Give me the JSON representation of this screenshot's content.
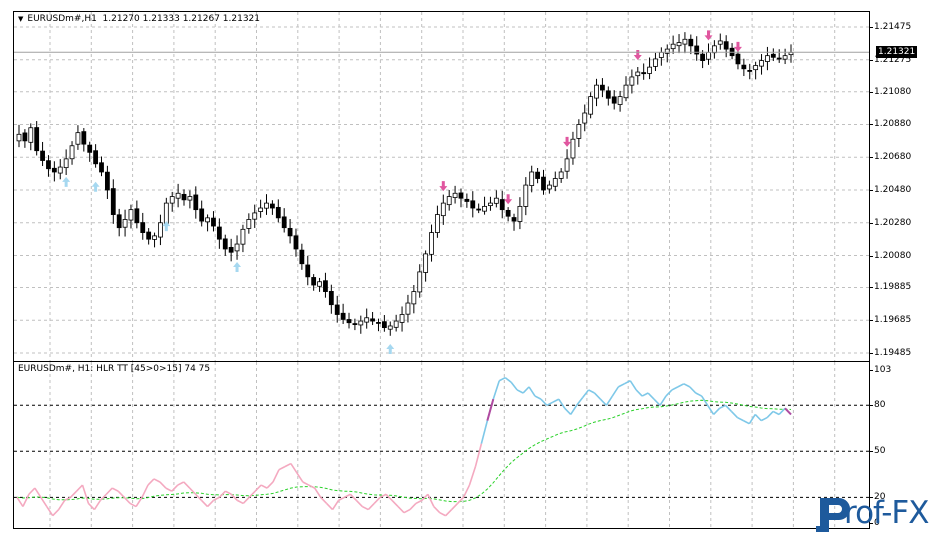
{
  "main_chart": {
    "title_symbol": "EURUSDm#,H1",
    "title_ohlc": "1.21270 1.21333 1.21267 1.21321",
    "price_ticks": [
      "1.21475",
      "1.21275",
      "1.21080",
      "1.20880",
      "1.20680",
      "1.20480",
      "1.20280",
      "1.20080",
      "1.19885",
      "1.19685",
      "1.19485"
    ],
    "current_price": "1.21321"
  },
  "indicator": {
    "title": "EURUSDm#, H1: HLR TT [45>0>15]  74 75",
    "levels": [
      "103",
      "80",
      "50",
      "20",
      "0"
    ]
  },
  "logo": {
    "text": "rof-FX"
  },
  "colors": {
    "background": "#ffffff",
    "grid": "#c0c0c0",
    "candle_bull": "#ffffff",
    "candle_bear": "#000000",
    "arrow_up": "#a6d8f0",
    "arrow_down": "#e0569f",
    "hlr_high": "#7ec8e8",
    "hlr_low": "#f4a9c0",
    "hlr_signal": "#2bd12b",
    "logo": "#1e5a9c"
  },
  "chart_data": {
    "type": "candlestick",
    "price_axis": {
      "min": 1.19485,
      "max": 1.21475
    },
    "current_price": 1.21321,
    "candles_close": [
      1.2082,
      1.2078,
      1.2086,
      1.2072,
      1.2066,
      1.2061,
      1.2059,
      1.2062,
      1.2067,
      1.2075,
      1.2083,
      1.2076,
      1.2071,
      1.2064,
      1.2059,
      1.2048,
      1.2033,
      1.2025,
      1.203,
      1.2036,
      1.2028,
      1.2022,
      1.2018,
      1.202,
      1.2028,
      1.204,
      1.2044,
      1.2046,
      1.2042,
      1.2044,
      1.2036,
      1.2029,
      1.2031,
      1.2026,
      1.2018,
      1.2012,
      1.201,
      1.2015,
      1.2024,
      1.203,
      1.2034,
      1.2037,
      1.204,
      1.2037,
      1.2031,
      1.2025,
      1.202,
      1.2012,
      1.2003,
      1.1995,
      1.199,
      1.1992,
      1.1986,
      1.1978,
      1.1972,
      1.1969,
      1.1967,
      1.1966,
      1.1968,
      1.197,
      1.1968,
      1.1967,
      1.1964,
      1.1965,
      1.1968,
      1.1972,
      1.1979,
      1.1986,
      1.1998,
      1.2009,
      1.2022,
      1.2033,
      1.204,
      1.2044,
      1.2046,
      1.2043,
      1.2041,
      1.2037,
      1.2036,
      1.2038,
      1.204,
      1.2043,
      1.2036,
      1.2032,
      1.2029,
      1.2038,
      1.2051,
      1.2059,
      1.2055,
      1.2048,
      1.2051,
      1.2055,
      1.2059,
      1.2067,
      1.2079,
      1.2088,
      1.2095,
      1.2105,
      1.2112,
      1.2109,
      1.2104,
      1.2101,
      1.2105,
      1.2112,
      1.2117,
      1.212,
      1.2119,
      1.2123,
      1.2128,
      1.2132,
      1.2134,
      1.2137,
      1.2138,
      1.214,
      1.2136,
      1.2131,
      1.2127,
      1.2132,
      1.2136,
      1.2139,
      1.2134,
      1.213,
      1.2125,
      1.2122,
      1.2121,
      1.2124,
      1.2127,
      1.213,
      1.2129,
      1.2128,
      1.213,
      1.2132
    ],
    "hlr_axis": {
      "min": 0,
      "max": 103,
      "levels": [
        80,
        50,
        20
      ]
    },
    "hlr_values": [
      20,
      14,
      22,
      26,
      20,
      14,
      8,
      12,
      18,
      20,
      24,
      28,
      16,
      12,
      18,
      22,
      26,
      24,
      20,
      16,
      14,
      20,
      28,
      32,
      30,
      26,
      24,
      28,
      30,
      26,
      22,
      18,
      14,
      18,
      20,
      24,
      22,
      18,
      16,
      20,
      24,
      28,
      26,
      30,
      38,
      40,
      42,
      36,
      30,
      28,
      26,
      20,
      16,
      12,
      18,
      20,
      22,
      18,
      14,
      12,
      16,
      20,
      22,
      18,
      14,
      10,
      12,
      16,
      18,
      22,
      14,
      10,
      8,
      12,
      16,
      20,
      28,
      40,
      55,
      70,
      84,
      96,
      98,
      95,
      90,
      88,
      92,
      86,
      84,
      80,
      82,
      84,
      78,
      74,
      80,
      85,
      90,
      88,
      84,
      80,
      86,
      92,
      94,
      96,
      90,
      86,
      88,
      84,
      80,
      86,
      90,
      92,
      94,
      92,
      88,
      86,
      80,
      74,
      78,
      80,
      76,
      72,
      70,
      68,
      74,
      70,
      72,
      76,
      74,
      78,
      74
    ]
  }
}
